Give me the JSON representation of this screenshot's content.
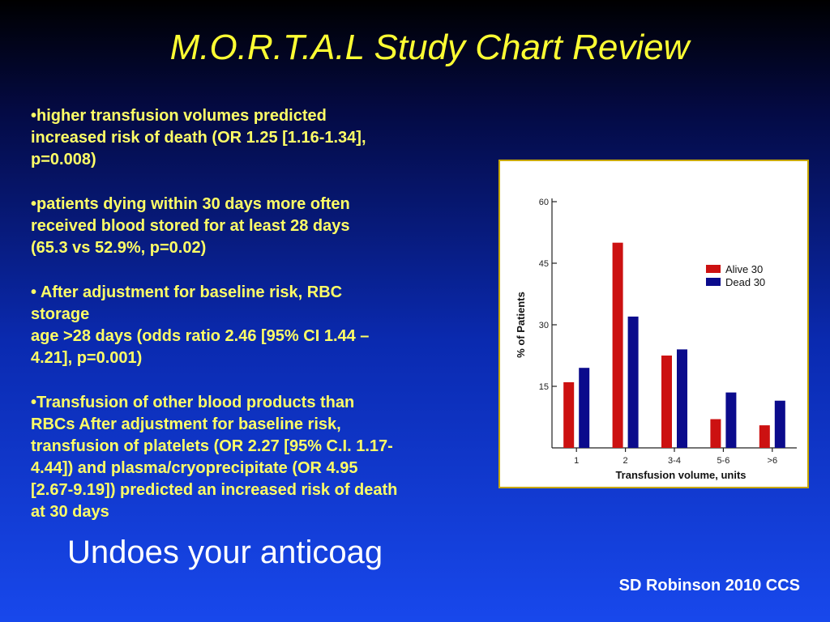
{
  "slide": {
    "title": "M.O.R.T.A.L Study Chart Review",
    "bullets": [
      "•higher transfusion volumes predicted\nincreased risk of death (OR 1.25 [1.16-1.34],\np=0.008)",
      "•patients dying within 30 days more often\nreceived blood stored for at least 28 days\n(65.3 vs 52.9%, p=0.02)",
      "• After adjustment for baseline risk, RBC\nstorage\nage >28 days (odds ratio 2.46 [95% CI 1.44 –\n4.21], p=0.001)",
      "•Transfusion of other blood products than\nRBCs After adjustment for baseline risk,\ntransfusion of platelets (OR 2.27 [95% C.I. 1.17-\n4.44]) and plasma/cryoprecipitate (OR 4.95\n[2.67-9.19]) predicted an increased risk of death\nat 30 days"
    ],
    "subtitle": "Undoes your anticoag",
    "citation": "SD Robinson 2010 CCS"
  },
  "colors": {
    "title": "#ffff33",
    "bullets": "#ffff66",
    "alive": "#cc1111",
    "dead": "#0b0b8c"
  },
  "chart_data": {
    "type": "bar",
    "categories": [
      "1",
      "2",
      "3-4",
      "5-6",
      ">6"
    ],
    "series": [
      {
        "name": "Alive 30",
        "values": [
          16,
          50,
          22.5,
          7,
          5.5
        ]
      },
      {
        "name": "Dead 30",
        "values": [
          19.5,
          32,
          24,
          13.5,
          11.5
        ]
      }
    ],
    "xlabel": "Transfusion volume, units",
    "ylabel": "% of Patients",
    "yticks": [
      15,
      30,
      45,
      60
    ],
    "ylim": [
      0,
      60
    ],
    "grid": false,
    "legend_position": "right"
  }
}
